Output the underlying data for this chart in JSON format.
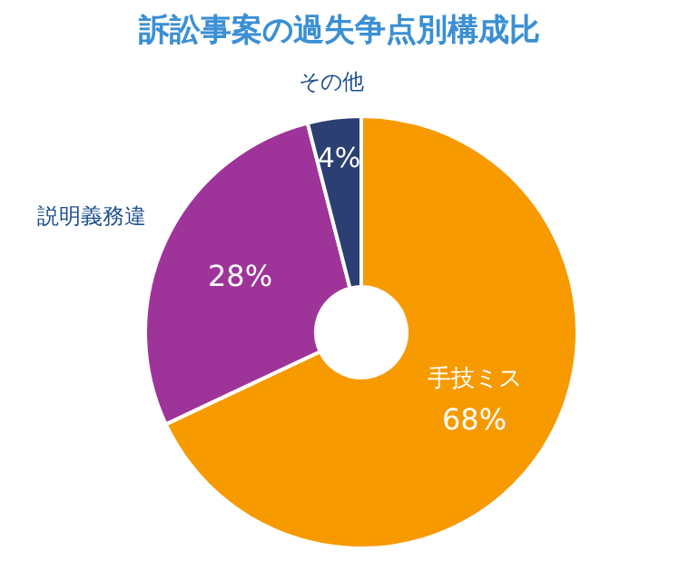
{
  "chart_data": {
    "type": "donut",
    "title": "訴訟事案の過失争点別構成比",
    "categories": [
      "手技ミス",
      "説明義務違",
      "その他"
    ],
    "values": [
      68,
      28,
      4
    ],
    "value_labels": [
      "68%",
      "28%",
      "4%"
    ],
    "colors": [
      "#f79a00",
      "#9e3499",
      "#2b3f72"
    ]
  }
}
